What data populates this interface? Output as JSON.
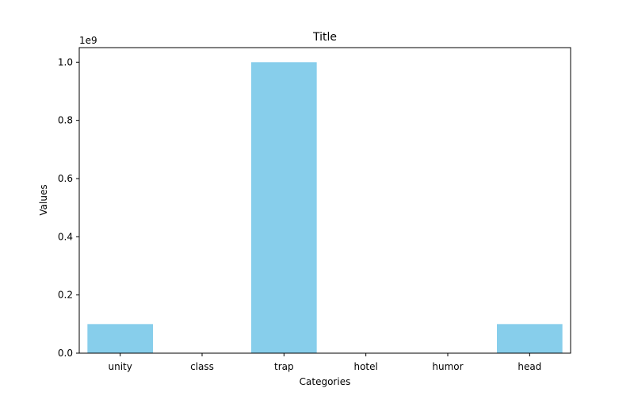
{
  "chart_data": {
    "type": "bar",
    "title": "Title",
    "xlabel": "Categories",
    "ylabel": "Values",
    "y_offset_label": "1e9",
    "categories": [
      "unity",
      "class",
      "trap",
      "hotel",
      "humor",
      "head"
    ],
    "values": [
      100000000,
      0,
      1000000000,
      0,
      0,
      100000000
    ],
    "ylim": [
      0,
      1050000000
    ],
    "y_ticks": [
      0,
      200000000,
      400000000,
      600000000,
      800000000,
      1000000000
    ],
    "y_tick_labels": [
      "0.0",
      "0.2",
      "0.4",
      "0.6",
      "0.8",
      "1.0"
    ],
    "bar_color": "#87ceeb",
    "grid": false,
    "legend": "none"
  }
}
